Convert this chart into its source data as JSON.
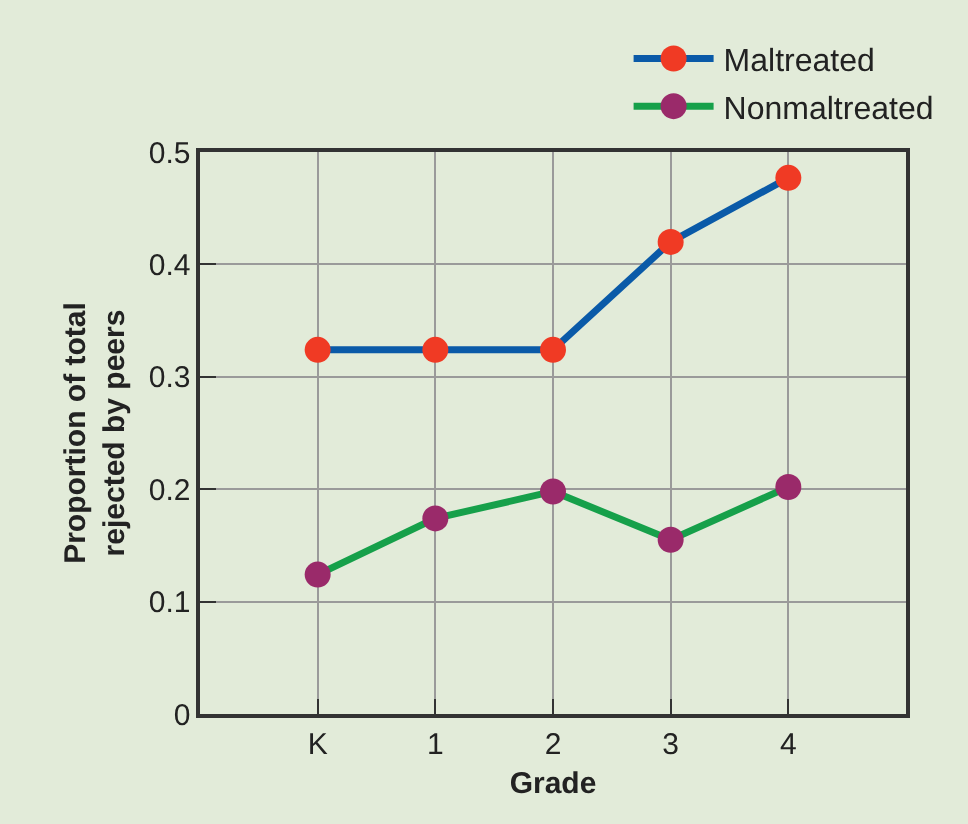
{
  "chart_data": {
    "type": "line",
    "xlabel": "Grade",
    "ylabel": "Proportion of total\nrejected by peers",
    "categories": [
      "K",
      "1",
      "2",
      "3",
      "4"
    ],
    "series": [
      {
        "name": "Maltreated",
        "color": "#0a5aa8",
        "colors": [
          "#f03a24",
          "#f03a24",
          "#f03a24",
          "#f03a24",
          "#f03a24"
        ],
        "values": [
          0.324,
          0.324,
          0.324,
          0.42,
          0.477
        ]
      },
      {
        "name": "Nonmaltreated",
        "color": "#16a04a",
        "colors": [
          "#9a2a6a",
          "#9a2a6a",
          "#9a2a6a",
          "#9a2a6a",
          "#9a2a6a"
        ],
        "values": [
          0.124,
          0.174,
          0.198,
          0.155,
          0.202
        ]
      }
    ],
    "ylim": [
      0,
      0.5
    ],
    "yticks": [
      0,
      0.1,
      0.2,
      0.3,
      0.4,
      0.5
    ],
    "grid": true,
    "legend": "top",
    "marker": "circle",
    "line_style": "solid"
  }
}
